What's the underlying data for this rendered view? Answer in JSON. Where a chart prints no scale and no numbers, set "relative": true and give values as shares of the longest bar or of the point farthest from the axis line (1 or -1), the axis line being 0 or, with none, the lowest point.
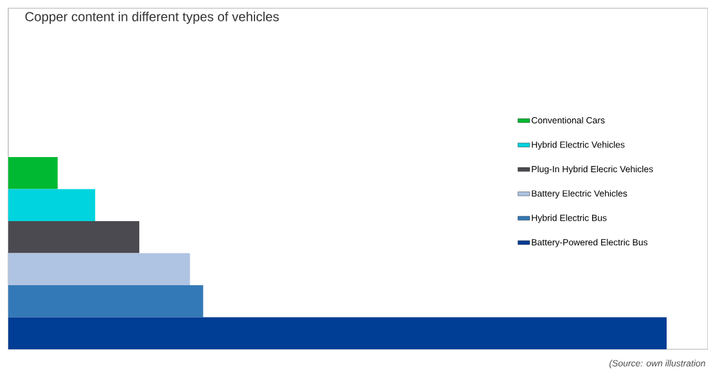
{
  "chart_data": {
    "type": "bar",
    "orientation": "horizontal",
    "relative": true,
    "stacked": true,
    "title": "Copper content in different types of vehicles",
    "categories": [
      null,
      null,
      null,
      null,
      null,
      null
    ],
    "series": [
      {
        "name": "Conventional Cars",
        "color": "#00b932",
        "values": [
          0.075,
          null,
          null,
          null,
          null,
          null
        ]
      },
      {
        "name": "Hybrid Electric Vehicles",
        "color": "#00d4de",
        "values": [
          null,
          0.132,
          null,
          null,
          null,
          null
        ]
      },
      {
        "name": "Plug-In Hybrid Elecric Vehicles",
        "color": "#4b4a50",
        "values": [
          null,
          null,
          0.199,
          null,
          null,
          null
        ]
      },
      {
        "name": "Battery Electric Vehicles",
        "color": "#afc4e3",
        "values": [
          null,
          null,
          null,
          0.276,
          null,
          null
        ]
      },
      {
        "name": "Hybrid Electric Bus",
        "color": "#3479b7",
        "values": [
          null,
          null,
          null,
          null,
          0.296,
          null
        ]
      },
      {
        "name": "Battery-Powered Electric Bus",
        "color": "#003d94",
        "values": [
          null,
          null,
          null,
          null,
          null,
          1
        ]
      }
    ],
    "legend": "right",
    "annotations": [
      "(Source: own illustration"
    ]
  }
}
